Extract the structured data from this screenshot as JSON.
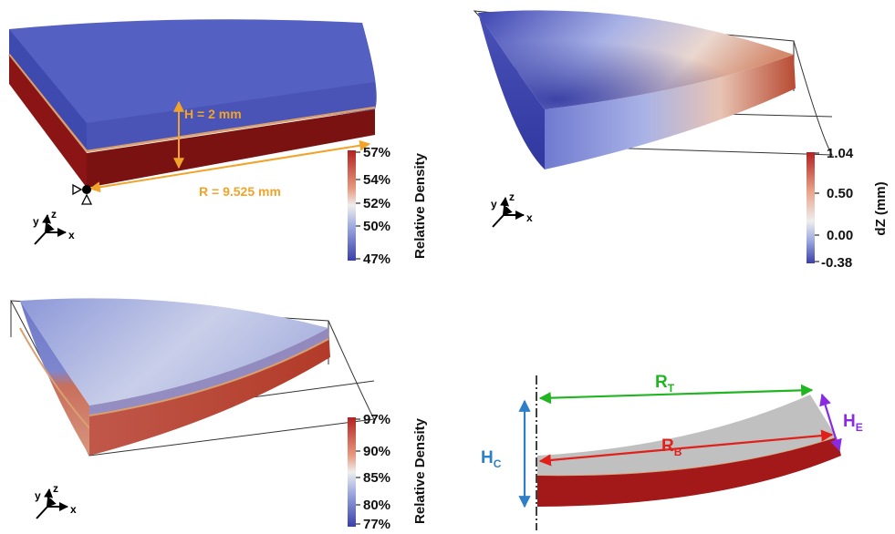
{
  "colors": {
    "density_low": "#4a52b0",
    "density_high": "#b22222",
    "interface": "#d9a070",
    "dim_orange": "#f2a32a",
    "rt_green": "#22b522",
    "rb_red": "#e0201a",
    "he_purple": "#8a2be2",
    "hc_blue": "#2f7fc8",
    "outline": "#000000"
  },
  "panel_a": {
    "height_label": "H = 2 mm",
    "radius_label": "R = 9.525 mm",
    "axes": {
      "x": "x",
      "y": "y",
      "z": "z"
    },
    "colorbar": {
      "title": "Relative Density",
      "ticks": [
        "57%",
        "54%",
        "52%",
        "50%",
        "47%"
      ]
    }
  },
  "panel_b": {
    "axes": {
      "x": "x",
      "y": "y",
      "z": "z"
    },
    "colorbar": {
      "title": "dZ (mm)",
      "ticks": [
        "1.04",
        "0.50",
        "0.00",
        "-0.38"
      ]
    }
  },
  "panel_c": {
    "axes": {
      "x": "x",
      "y": "y",
      "z": "z"
    },
    "colorbar": {
      "title": "Relative Density",
      "ticks": [
        "97%",
        "90%",
        "85%",
        "80%",
        "77%"
      ]
    }
  },
  "panel_d": {
    "rt": {
      "main": "R",
      "sub": "T"
    },
    "rb": {
      "main": "R",
      "sub": "B"
    },
    "he": {
      "main": "H",
      "sub": "E"
    },
    "hc": {
      "main": "H",
      "sub": "C"
    }
  }
}
